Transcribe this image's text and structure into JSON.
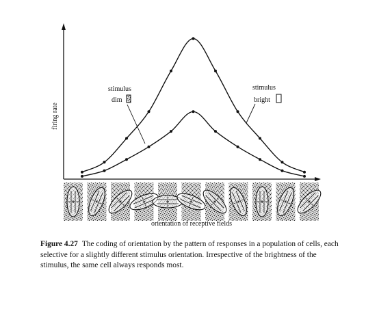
{
  "chart_data": {
    "type": "line",
    "ylabel": "firing rate",
    "xlabel": "orientation of receptive fields",
    "x": [
      0,
      1,
      2,
      3,
      4,
      5,
      6,
      7,
      8,
      9,
      10
    ],
    "series": [
      {
        "values": [
          0.05,
          0.12,
          0.29,
          0.48,
          0.77,
          1.0,
          0.77,
          0.48,
          0.29,
          0.12,
          0.05
        ]
      },
      {
        "values": [
          0.02,
          0.06,
          0.14,
          0.23,
          0.34,
          0.48,
          0.34,
          0.23,
          0.14,
          0.06,
          0.02
        ]
      }
    ],
    "ylim": [
      0,
      1.08
    ],
    "annotations": {
      "dim": {
        "line1": "stimulus",
        "line2": "dim"
      },
      "bright": {
        "line1": "stimulus",
        "line2": "bright"
      }
    },
    "receptive_field_orientations_deg": [
      0,
      22.5,
      45,
      67.5,
      90,
      112.5,
      135,
      157.5,
      180,
      202.5,
      225
    ],
    "grid": false
  },
  "caption": {
    "label": "Figure 4.27",
    "text": "The coding of orientation by the pattern of responses in a population of cells, each selective for a slightly different stimulus orientation. Irrespective of the brightness of the stimulus, the same cell always responds most."
  }
}
